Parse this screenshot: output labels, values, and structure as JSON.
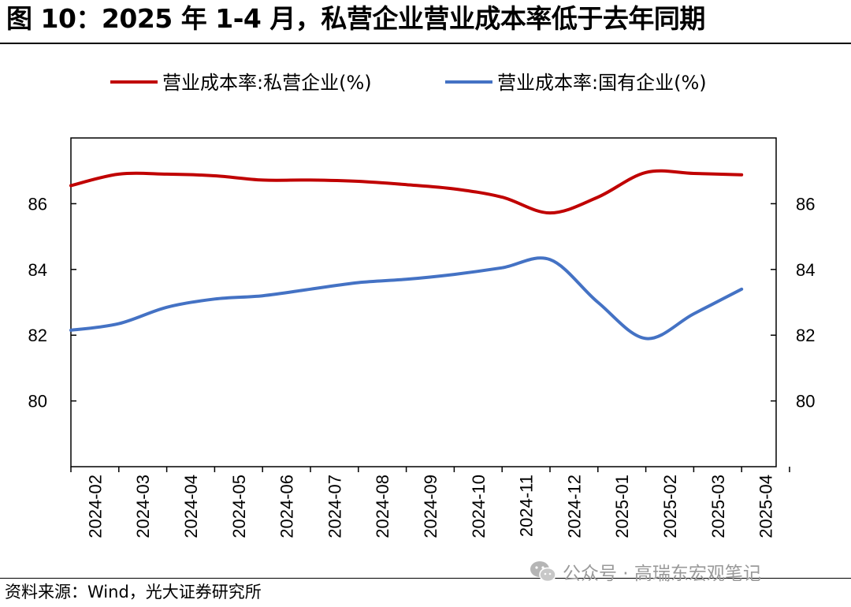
{
  "title": "图 10：2025 年 1-4 月，私营企业营业成本率低于去年同期",
  "source": "资料来源：Wind，光大证券研究所",
  "watermark": "公众号 · 高瑞东宏观笔记",
  "chart_data": {
    "type": "line",
    "x": [
      "2024-02",
      "2024-03",
      "2024-04",
      "2024-05",
      "2024-06",
      "2024-07",
      "2024-08",
      "2024-09",
      "2024-10",
      "2024-11",
      "2024-12",
      "2025-01",
      "2025-02",
      "2025-03",
      "2025-04"
    ],
    "x_tick_labels": [
      "2024-02",
      "2024-03",
      "2024-04",
      "2024-05",
      "2024-06",
      "2024-07",
      "2024-08",
      "2024-09",
      "2024-10",
      "2024-11",
      "2024-12",
      "2025-01",
      "2025-02",
      "2025-03",
      "2025-04"
    ],
    "series": [
      {
        "name": "营业成本率:私营企业(%)",
        "color": "#c00000",
        "values": [
          86.55,
          86.9,
          86.9,
          86.85,
          86.72,
          86.72,
          86.68,
          86.58,
          86.45,
          86.2,
          85.72,
          86.2,
          86.95,
          86.92,
          86.88
        ]
      },
      {
        "name": "营业成本率:国有企业(%)",
        "color": "#4472c4",
        "values": [
          82.15,
          82.35,
          82.85,
          83.1,
          83.2,
          83.4,
          83.6,
          83.7,
          83.85,
          84.05,
          84.3,
          83.0,
          81.9,
          82.65,
          83.4
        ]
      }
    ],
    "ylim": [
      78,
      88
    ],
    "y_ticks": [
      80,
      82,
      84,
      86
    ],
    "grid": false,
    "legend_position": "top"
  }
}
